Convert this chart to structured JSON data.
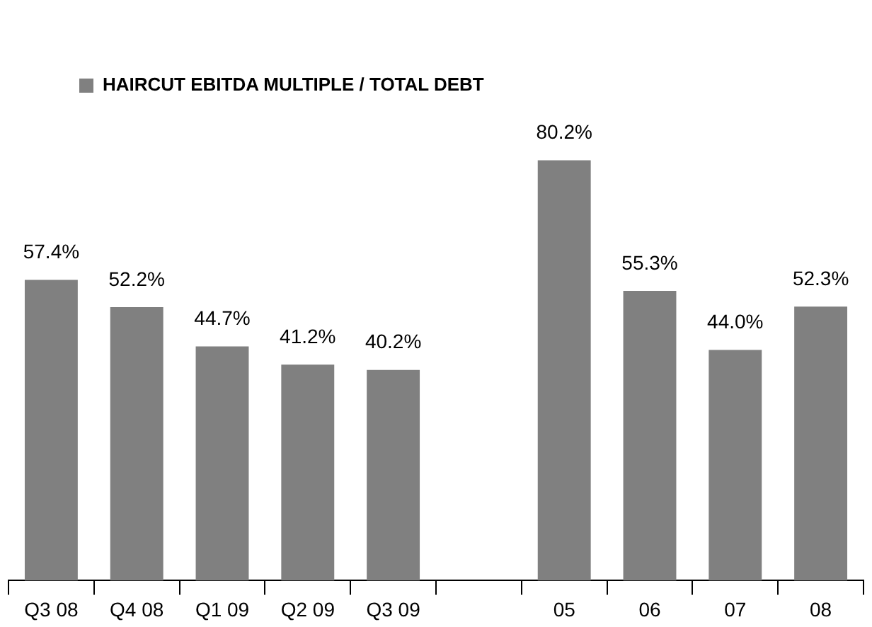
{
  "chart_data": {
    "type": "bar",
    "categories": [
      "Q3 08",
      "Q4 08",
      "Q1 09",
      "Q2 09",
      "Q3 09",
      null,
      "05",
      "06",
      "07",
      "08"
    ],
    "series": [
      {
        "name": "HAIRCUT EBITDA MULTIPLE / TOTAL DEBT",
        "color": "#808080",
        "values": [
          57.4,
          52.2,
          44.7,
          41.2,
          40.2,
          null,
          80.2,
          55.3,
          44.0,
          52.3
        ],
        "value_labels": [
          "57.4%",
          "52.2%",
          "44.7%",
          "41.2%",
          "40.2%",
          null,
          "80.2%",
          "55.3%",
          "44.0%",
          "52.3%"
        ]
      }
    ],
    "legend": "top",
    "grid": false
  }
}
